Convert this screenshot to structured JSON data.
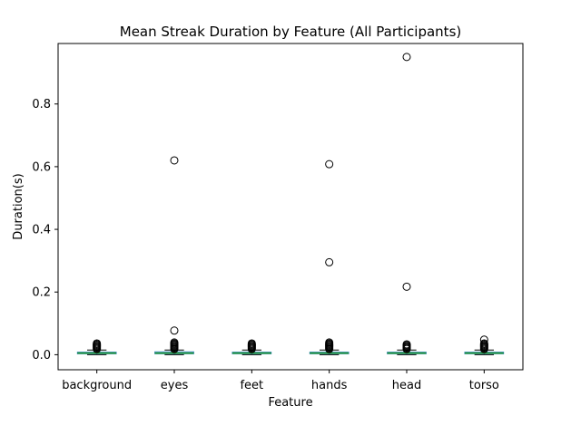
{
  "chart_data": {
    "type": "box",
    "title": "Mean Streak Duration by Feature (All Participants)",
    "xlabel": "Feature",
    "ylabel": "Duration(s)",
    "ylim": [
      -0.048,
      0.993
    ],
    "yticks": [
      "0.0",
      "0.2",
      "0.4",
      "0.6",
      "0.8"
    ],
    "ytick_values": [
      0.0,
      0.2,
      0.4,
      0.6,
      0.8
    ],
    "grid": false,
    "categories": [
      "background",
      "eyes",
      "feet",
      "hands",
      "head",
      "torso"
    ],
    "boxes": [
      {
        "category": "background",
        "q1": 0.003,
        "median": 0.005,
        "q3": 0.008,
        "whisker_low": 0.0,
        "whisker_high": 0.015,
        "outliers": [
          0.018,
          0.021,
          0.024,
          0.027,
          0.03,
          0.033,
          0.036
        ]
      },
      {
        "category": "eyes",
        "q1": 0.003,
        "median": 0.005,
        "q3": 0.009,
        "whisker_low": 0.0,
        "whisker_high": 0.015,
        "outliers": [
          0.018,
          0.021,
          0.024,
          0.027,
          0.03,
          0.033,
          0.036,
          0.039,
          0.077,
          0.62
        ]
      },
      {
        "category": "feet",
        "q1": 0.003,
        "median": 0.005,
        "q3": 0.008,
        "whisker_low": 0.0,
        "whisker_high": 0.015,
        "outliers": [
          0.018,
          0.021,
          0.024,
          0.027,
          0.03,
          0.033,
          0.036
        ]
      },
      {
        "category": "hands",
        "q1": 0.003,
        "median": 0.005,
        "q3": 0.008,
        "whisker_low": 0.0,
        "whisker_high": 0.015,
        "outliers": [
          0.018,
          0.021,
          0.024,
          0.027,
          0.03,
          0.033,
          0.036,
          0.039,
          0.295,
          0.608
        ]
      },
      {
        "category": "head",
        "q1": 0.003,
        "median": 0.005,
        "q3": 0.008,
        "whisker_low": 0.0,
        "whisker_high": 0.015,
        "outliers": [
          0.018,
          0.021,
          0.024,
          0.027,
          0.03,
          0.033,
          0.217,
          0.95
        ]
      },
      {
        "category": "torso",
        "q1": 0.003,
        "median": 0.005,
        "q3": 0.008,
        "whisker_low": 0.0,
        "whisker_high": 0.015,
        "outliers": [
          0.018,
          0.021,
          0.024,
          0.027,
          0.03,
          0.033,
          0.036,
          0.048
        ]
      }
    ],
    "colors": {
      "box": "#1f77b4",
      "median": "#2ca02c",
      "whisker": "#000000",
      "outlier_edge": "#000000"
    }
  }
}
